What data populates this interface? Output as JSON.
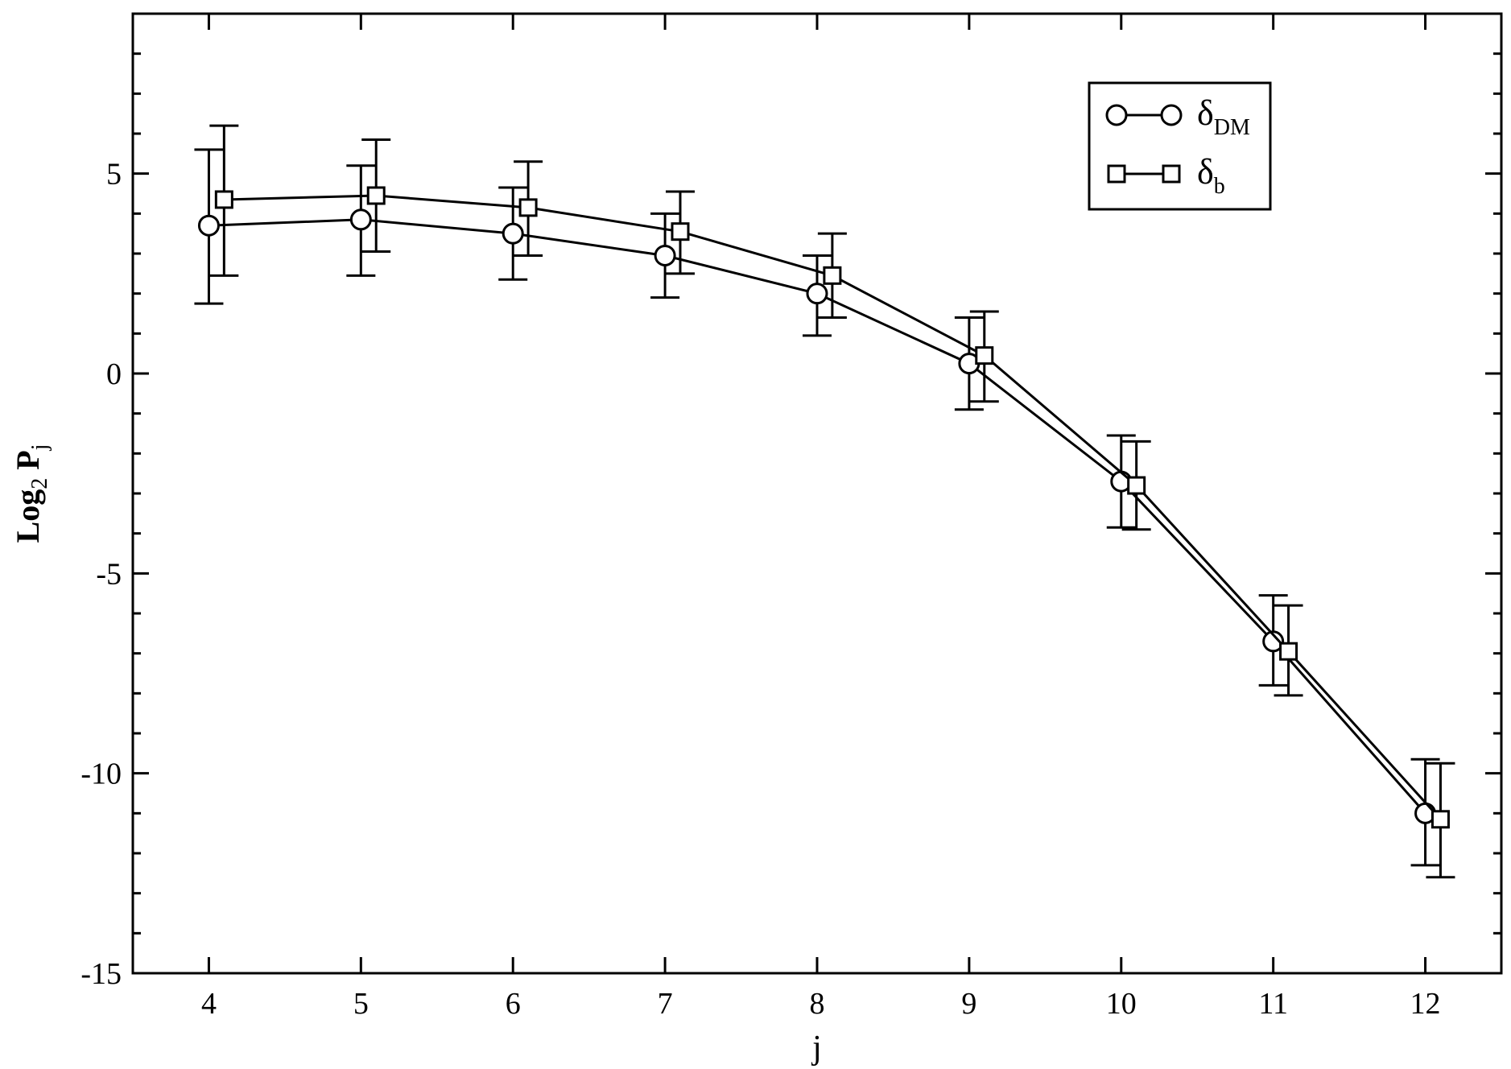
{
  "chart_data": {
    "type": "line",
    "title": "",
    "xlabel": "j",
    "ylabel": {
      "main": "Log",
      "sub": "2",
      "var": "P",
      "var_sub": "j"
    },
    "xlim": [
      3.5,
      12.5
    ],
    "ylim": [
      -15,
      9
    ],
    "xticks": [
      4,
      5,
      6,
      7,
      8,
      9,
      10,
      11,
      12
    ],
    "yticks": [
      -15,
      -10,
      -5,
      0,
      5
    ],
    "yticks_minor_step": 1,
    "grid": false,
    "legend_position": "top-right",
    "series": [
      {
        "name": "δ",
        "name_sub": "DM",
        "marker": "circle",
        "x": [
          4,
          5,
          6,
          7,
          8,
          9,
          10,
          11,
          12
        ],
        "y": [
          3.7,
          3.85,
          3.5,
          2.95,
          2.0,
          0.25,
          -2.7,
          -6.7,
          -11.0
        ],
        "err_low": [
          1.75,
          2.45,
          2.35,
          1.9,
          0.95,
          -0.9,
          -3.85,
          -7.8,
          -12.3
        ],
        "err_high": [
          5.6,
          5.2,
          4.65,
          4.0,
          2.95,
          1.4,
          -1.55,
          -5.55,
          -9.65
        ]
      },
      {
        "name": "δ",
        "name_sub": "b",
        "marker": "square",
        "x": [
          4.1,
          5.1,
          6.1,
          7.1,
          8.1,
          9.1,
          10.1,
          11.1,
          12.1
        ],
        "y": [
          4.35,
          4.45,
          4.15,
          3.55,
          2.45,
          0.45,
          -2.8,
          -6.95,
          -11.15
        ],
        "err_low": [
          2.45,
          3.05,
          2.95,
          2.5,
          1.4,
          -0.7,
          -3.9,
          -8.05,
          -12.6
        ],
        "err_high": [
          6.2,
          5.85,
          5.3,
          4.55,
          3.5,
          1.55,
          -1.7,
          -5.8,
          -9.75
        ]
      }
    ]
  }
}
